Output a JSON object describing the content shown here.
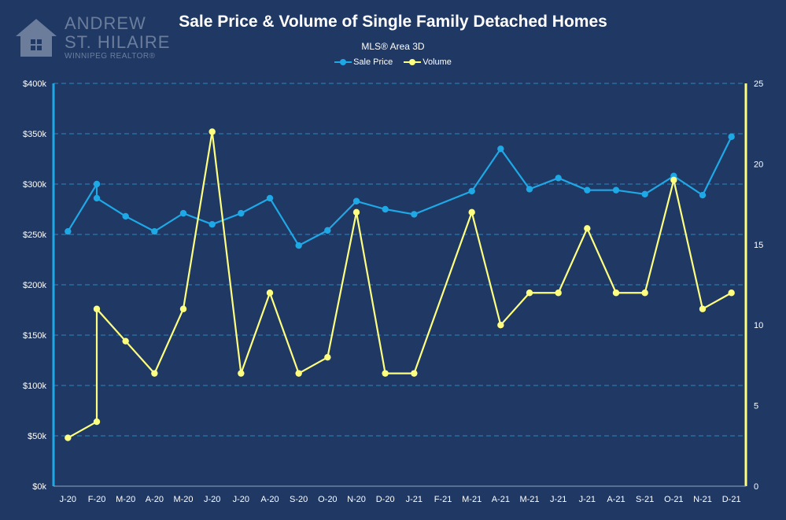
{
  "logo": {
    "line1": "ANDREW",
    "line2": "ST. HILAIRE",
    "tagline": "WINNIPEG REALTOR®"
  },
  "colors": {
    "background": "#1f3864",
    "sale_price": "#1fa8e6",
    "volume": "#ffff7f",
    "grid": "#2e86c1",
    "text": "#ffffff"
  },
  "chart_data": {
    "type": "line",
    "title": "Sale Price & Volume of Single Family Detached Homes",
    "subtitle": "MLS® Area 3D",
    "legend_position": "top",
    "grid": true,
    "categories": [
      "J-20",
      "F-20",
      "M-20",
      "A-20",
      "M-20",
      "J-20",
      "J-20",
      "A-20",
      "S-20",
      "O-20",
      "N-20",
      "D-20",
      "J-21",
      "F-21",
      "M-21",
      "A-21",
      "M-21",
      "J-21",
      "J-21",
      "A-21",
      "S-21",
      "O-21",
      "N-21",
      "D-21"
    ],
    "y_left": {
      "ylim": [
        0,
        400000
      ],
      "ticks": [
        "$0k",
        "$50k",
        "$100k",
        "$150k",
        "$200k",
        "$250k",
        "$300k",
        "$350k",
        "$400k"
      ]
    },
    "y_right": {
      "ylim": [
        0,
        25
      ],
      "ticks": [
        "0",
        "5",
        "10",
        "15",
        "20",
        "25"
      ]
    },
    "series": [
      {
        "name": "Sale Price",
        "axis": "left",
        "color": "#1fa8e6",
        "points": [
          {
            "x": 0,
            "y": 253000
          },
          {
            "x": 1,
            "y": 300000
          },
          {
            "x": 1,
            "y": 286000
          },
          {
            "x": 2,
            "y": 268000
          },
          {
            "x": 3,
            "y": 253000
          },
          {
            "x": 4,
            "y": 271000
          },
          {
            "x": 5,
            "y": 260000
          },
          {
            "x": 6,
            "y": 271000
          },
          {
            "x": 7,
            "y": 286000
          },
          {
            "x": 8,
            "y": 239000
          },
          {
            "x": 9,
            "y": 254000
          },
          {
            "x": 10,
            "y": 283000
          },
          {
            "x": 11,
            "y": 275000
          },
          {
            "x": 12,
            "y": 270000
          },
          {
            "x": 14,
            "y": 293000
          },
          {
            "x": 15,
            "y": 335000
          },
          {
            "x": 16,
            "y": 295000
          },
          {
            "x": 17,
            "y": 306000
          },
          {
            "x": 18,
            "y": 294000
          },
          {
            "x": 19,
            "y": 294000
          },
          {
            "x": 20,
            "y": 290000
          },
          {
            "x": 21,
            "y": 308000
          },
          {
            "x": 22,
            "y": 289000
          },
          {
            "x": 23,
            "y": 347000
          }
        ]
      },
      {
        "name": "Volume",
        "axis": "right",
        "color": "#ffff7f",
        "points": [
          {
            "x": 0,
            "y": 3
          },
          {
            "x": 1,
            "y": 4
          },
          {
            "x": 1,
            "y": 11
          },
          {
            "x": 2,
            "y": 9
          },
          {
            "x": 3,
            "y": 7
          },
          {
            "x": 4,
            "y": 11
          },
          {
            "x": 5,
            "y": 22
          },
          {
            "x": 6,
            "y": 7
          },
          {
            "x": 7,
            "y": 12
          },
          {
            "x": 8,
            "y": 7
          },
          {
            "x": 9,
            "y": 8
          },
          {
            "x": 10,
            "y": 17
          },
          {
            "x": 11,
            "y": 7
          },
          {
            "x": 12,
            "y": 7
          },
          {
            "x": 14,
            "y": 17
          },
          {
            "x": 15,
            "y": 10
          },
          {
            "x": 16,
            "y": 12
          },
          {
            "x": 17,
            "y": 12
          },
          {
            "x": 18,
            "y": 16
          },
          {
            "x": 19,
            "y": 12
          },
          {
            "x": 20,
            "y": 12
          },
          {
            "x": 21,
            "y": 19
          },
          {
            "x": 22,
            "y": 11
          },
          {
            "x": 23,
            "y": 12
          }
        ]
      }
    ]
  }
}
